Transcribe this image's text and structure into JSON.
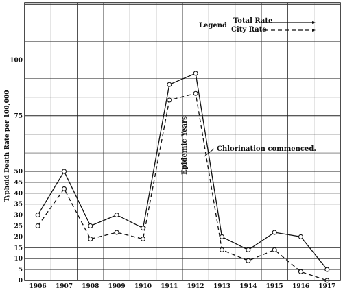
{
  "chart_data": {
    "type": "line",
    "ylabel": "Typhoid Death Rate per 100,000",
    "categories": [
      "1906",
      "1907",
      "1908",
      "1909",
      "1910",
      "1911",
      "1912",
      "1913",
      "1914",
      "1915",
      "1916",
      "1917"
    ],
    "ylim": [
      0,
      125
    ],
    "yticks": [
      0,
      5,
      10,
      15,
      20,
      25,
      30,
      35,
      40,
      45,
      50,
      75,
      100
    ],
    "grid": true,
    "legend": {
      "title": "Legend",
      "placement": "top-right",
      "entries": [
        {
          "name": "Total Rate",
          "style": "solid"
        },
        {
          "name": "City Rate",
          "style": "dashed"
        }
      ]
    },
    "series": [
      {
        "name": "Total Rate",
        "style": "solid",
        "values": [
          30,
          50,
          25,
          30,
          24,
          89,
          94,
          20,
          14,
          22,
          20,
          5
        ]
      },
      {
        "name": "City Rate",
        "style": "dashed",
        "values": [
          25,
          42,
          19,
          22,
          19,
          82,
          85,
          14,
          9,
          14,
          4,
          0
        ]
      }
    ],
    "annotations": [
      {
        "text": "Epidemic Years",
        "orientation": "vertical"
      },
      {
        "text": "Chlorination commenced.",
        "orientation": "horizontal"
      }
    ]
  }
}
